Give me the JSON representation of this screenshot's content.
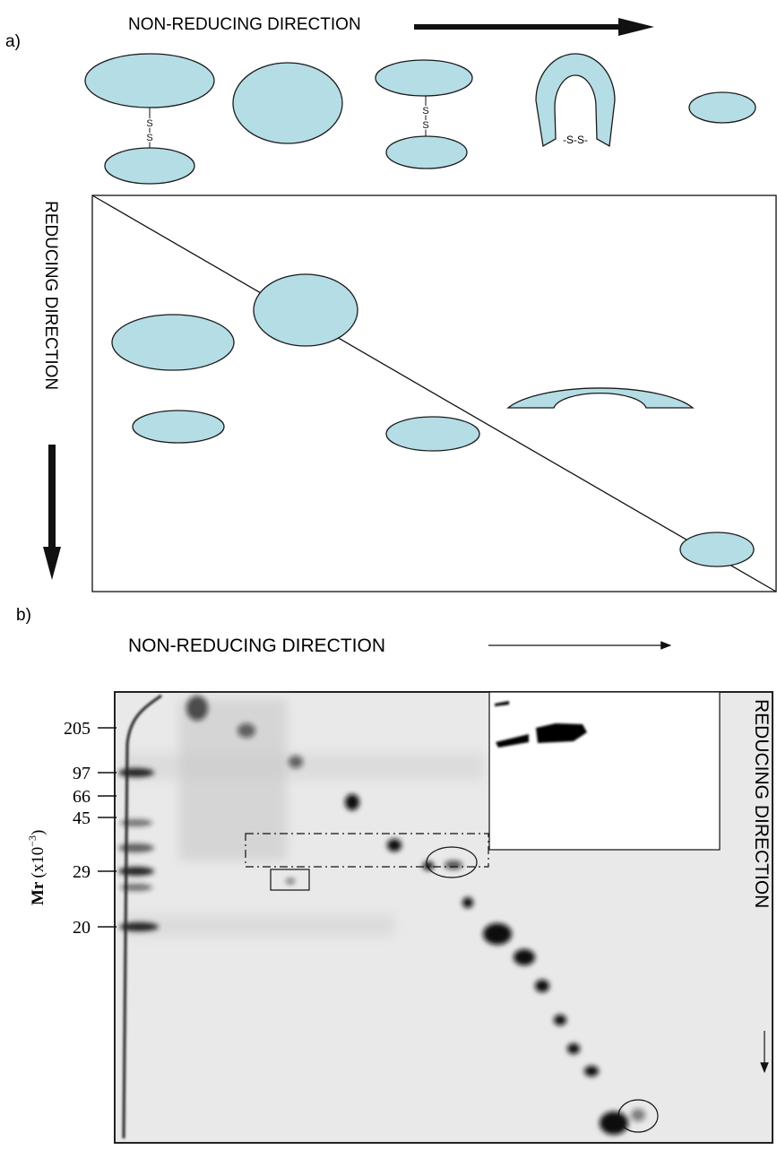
{
  "part_a": {
    "label": "a)",
    "title": "NON-REDUCING DIRECTION",
    "side_label": "REDUCING DIRECTION",
    "bond_label": "-S-S-",
    "sulfur": [
      "S",
      "S",
      "S",
      "S"
    ]
  },
  "part_b": {
    "label": "b)",
    "title": "NON-REDUCING DIRECTION",
    "side_label": "REDUCING DIRECTION",
    "axis_label": {
      "name": "Mr",
      "unit_prefix": "(x10",
      "exponent": "−3",
      "unit_suffix": ")"
    },
    "markers": [
      "205",
      "97",
      "66",
      "45",
      "29",
      "20"
    ]
  }
}
